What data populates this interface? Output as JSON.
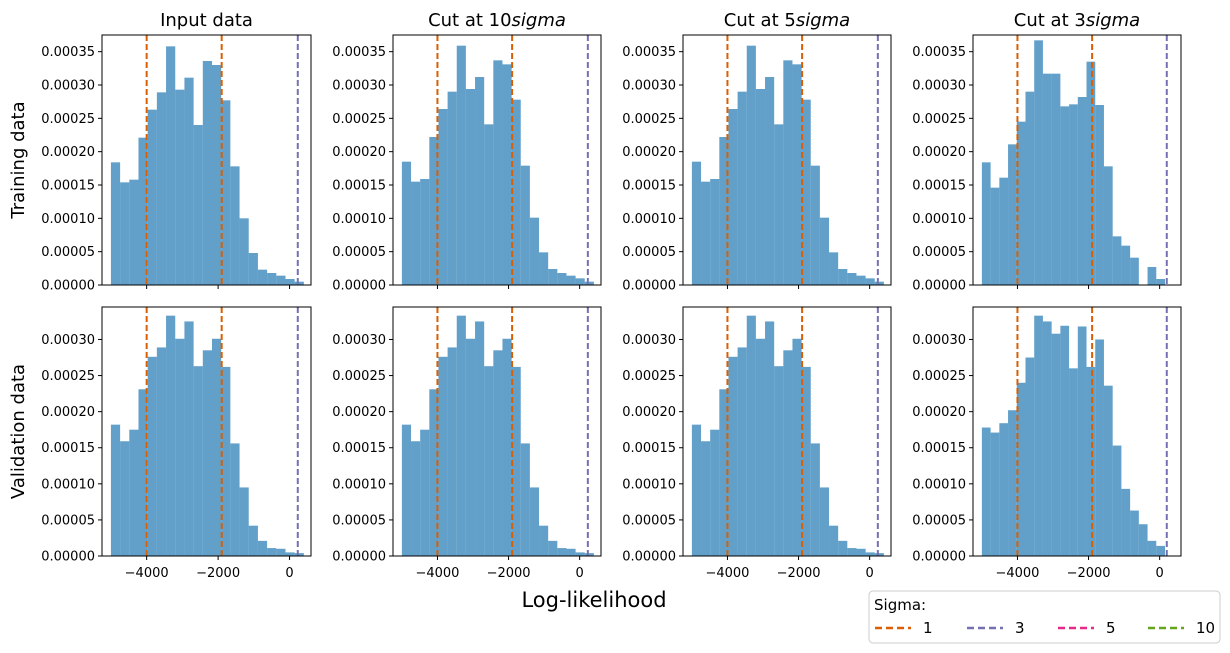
{
  "chart_data": {
    "type": "bar",
    "layout_rows": [
      "Training data",
      "Validation data"
    ],
    "layout_cols": [
      "Input data",
      "Cut at 10$sigma$",
      "Cut at 5$sigma$",
      "Cut at 3$sigma$"
    ],
    "col_titles": [
      {
        "prefix": "Input data",
        "math": ""
      },
      {
        "prefix": "Cut at 10",
        "math": "sigma"
      },
      {
        "prefix": "Cut at 5",
        "math": "sigma"
      },
      {
        "prefix": "Cut at 3",
        "math": "sigma"
      }
    ],
    "row_labels": [
      "Training data",
      "Validation data"
    ],
    "xlabel": "Log-likelihood",
    "xlim": [
      -5250,
      600
    ],
    "xticks": [
      -4000,
      -2000,
      0
    ],
    "xtick_labels": [
      "−4000",
      "−2000",
      "0"
    ],
    "legend": {
      "title": "Sigma:",
      "position": "lower-right",
      "entries": [
        {
          "label": "1",
          "color": "#d95f02"
        },
        {
          "label": "3",
          "color": "#7570b3"
        },
        {
          "label": "5",
          "color": "#e7298a"
        },
        {
          "label": "10",
          "color": "#66a61e"
        }
      ]
    },
    "bar_color": "#1f77b4",
    "rows": [
      {
        "ylim": [
          0,
          0.000375
        ],
        "yticks": [
          0,
          5e-05,
          0.0001,
          0.00015,
          0.0002,
          0.00025,
          0.0003,
          0.00035
        ],
        "ytick_labels": [
          "0.00000",
          "0.00005",
          "0.00010",
          "0.00015",
          "0.00020",
          "0.00025",
          "0.00030",
          "0.00035"
        ],
        "panels": [
          {
            "bin_start": -5000,
            "bin_end": 400,
            "values": [
              0.000184,
              0.000154,
              0.000158,
              0.000221,
              0.000263,
              0.000289,
              0.000358,
              0.000293,
              0.000311,
              0.00024,
              0.000336,
              0.00033,
              0.000277,
              0.000178,
              0.0001,
              4.8e-05,
              2.3e-05,
              1.8e-05,
              1.4e-05,
              9e-06,
              5e-06
            ],
            "vlines": [
              {
                "x": -4000,
                "color": "#d95f02"
              },
              {
                "x": -1900,
                "color": "#d95f02"
              },
              {
                "x": 230,
                "color": "#7570b3"
              }
            ]
          },
          {
            "bin_start": -5000,
            "bin_end": 400,
            "values": [
              0.000185,
              0.000155,
              0.000159,
              0.000222,
              0.000264,
              0.00029,
              0.000359,
              0.000294,
              0.000312,
              0.000241,
              0.000337,
              0.000331,
              0.000278,
              0.000179,
              0.000101,
              4.9e-05,
              2.4e-05,
              1.8e-05,
              1.4e-05,
              1e-05,
              5e-06
            ],
            "vlines": [
              {
                "x": -4000,
                "color": "#d95f02"
              },
              {
                "x": -1900,
                "color": "#d95f02"
              },
              {
                "x": 230,
                "color": "#7570b3"
              }
            ]
          },
          {
            "bin_start": -5000,
            "bin_end": 400,
            "values": [
              0.000185,
              0.000155,
              0.000159,
              0.000222,
              0.000264,
              0.00029,
              0.000359,
              0.000294,
              0.000312,
              0.000241,
              0.000337,
              0.000331,
              0.000278,
              0.000179,
              0.000101,
              4.9e-05,
              2.4e-05,
              1.8e-05,
              1.4e-05,
              1e-05,
              5e-06
            ],
            "vlines": [
              {
                "x": -4000,
                "color": "#d95f02"
              },
              {
                "x": -1900,
                "color": "#d95f02"
              },
              {
                "x": 230,
                "color": "#7570b3"
              }
            ]
          },
          {
            "bin_start": -5000,
            "bin_end": 150,
            "values": [
              0.000184,
              0.000146,
              0.000161,
              0.000211,
              0.000245,
              0.00029,
              0.000367,
              0.000317,
              0.000317,
              0.000268,
              0.000271,
              0.000282,
              0.000335,
              0.00027,
              0.000178,
              7.3e-05,
              5.9e-05,
              4.1e-05,
              0.0,
              2.7e-05,
              9e-06
            ],
            "vlines": [
              {
                "x": -4000,
                "color": "#d95f02"
              },
              {
                "x": -1900,
                "color": "#d95f02"
              },
              {
                "x": 200,
                "color": "#7570b3"
              }
            ]
          }
        ]
      },
      {
        "ylim": [
          0,
          0.000345
        ],
        "yticks": [
          0,
          5e-05,
          0.0001,
          0.00015,
          0.0002,
          0.00025,
          0.0003
        ],
        "ytick_labels": [
          "0.00000",
          "0.00005",
          "0.00010",
          "0.00015",
          "0.00020",
          "0.00025",
          "0.00030"
        ],
        "panels": [
          {
            "bin_start": -5000,
            "bin_end": 400,
            "values": [
              0.000182,
              0.000159,
              0.000175,
              0.000231,
              0.000276,
              0.000289,
              0.000333,
              0.000301,
              0.000325,
              0.000263,
              0.000285,
              0.000301,
              0.000262,
              0.000156,
              9.5e-05,
              4.2e-05,
              2.1e-05,
              1.1e-05,
              1e-05,
              5e-06,
              4e-06
            ],
            "vlines": [
              {
                "x": -4000,
                "color": "#d95f02"
              },
              {
                "x": -1900,
                "color": "#d95f02"
              },
              {
                "x": 230,
                "color": "#7570b3"
              }
            ]
          },
          {
            "bin_start": -5000,
            "bin_end": 400,
            "values": [
              0.000182,
              0.000159,
              0.000175,
              0.000231,
              0.000276,
              0.000289,
              0.000333,
              0.000301,
              0.000325,
              0.000263,
              0.000285,
              0.000301,
              0.000262,
              0.000156,
              9.5e-05,
              4.2e-05,
              2.1e-05,
              1.1e-05,
              1e-05,
              5e-06,
              4e-06
            ],
            "vlines": [
              {
                "x": -4000,
                "color": "#d95f02"
              },
              {
                "x": -1900,
                "color": "#d95f02"
              },
              {
                "x": 230,
                "color": "#7570b3"
              }
            ]
          },
          {
            "bin_start": -5000,
            "bin_end": 400,
            "values": [
              0.000182,
              0.000159,
              0.000175,
              0.000231,
              0.000276,
              0.000289,
              0.000333,
              0.000301,
              0.000325,
              0.000263,
              0.000285,
              0.000301,
              0.000262,
              0.000156,
              9.5e-05,
              4.2e-05,
              2.1e-05,
              1.1e-05,
              1e-05,
              5e-06,
              4e-06
            ],
            "vlines": [
              {
                "x": -4000,
                "color": "#d95f02"
              },
              {
                "x": -1900,
                "color": "#d95f02"
              },
              {
                "x": 230,
                "color": "#7570b3"
              }
            ]
          },
          {
            "bin_start": -5000,
            "bin_end": 150,
            "values": [
              0.000178,
              0.000171,
              0.000184,
              0.000202,
              0.00024,
              0.000275,
              0.000333,
              0.000325,
              0.000308,
              0.000319,
              0.00026,
              0.000318,
              0.000262,
              0.0003,
              0.000236,
              0.000153,
              9.3e-05,
              6.3e-05,
              4.4e-05,
              2.1e-05,
              1.4e-05
            ],
            "vlines": [
              {
                "x": -4000,
                "color": "#d95f02"
              },
              {
                "x": -1900,
                "color": "#d95f02"
              },
              {
                "x": 200,
                "color": "#7570b3"
              }
            ]
          }
        ]
      }
    ]
  }
}
